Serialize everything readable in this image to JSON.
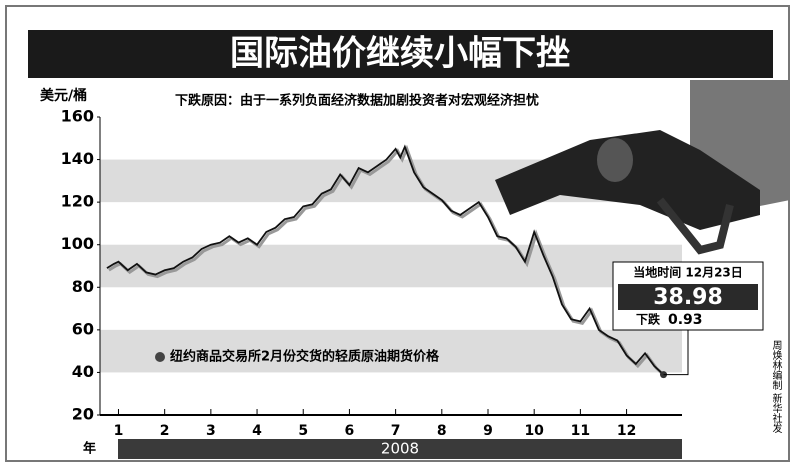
{
  "chart_data": {
    "type": "line",
    "title": "国际油价继续小幅下挫",
    "y_label": "美元/桶",
    "subtitle": "下跌原因：由于一系列负面经济数据加剧投资者对宏观经济担忧",
    "x_label": "年",
    "year": "2008",
    "x": [
      0.75,
      0.9,
      1.0,
      1.2,
      1.4,
      1.6,
      1.8,
      2.0,
      2.2,
      2.4,
      2.6,
      2.8,
      3.0,
      3.2,
      3.4,
      3.6,
      3.8,
      4.0,
      4.2,
      4.4,
      4.6,
      4.8,
      5.0,
      5.2,
      5.4,
      5.6,
      5.8,
      6.0,
      6.2,
      6.4,
      6.6,
      6.8,
      7.0,
      7.1,
      7.2,
      7.4,
      7.6,
      7.8,
      8.0,
      8.2,
      8.4,
      8.6,
      8.8,
      9.0,
      9.2,
      9.4,
      9.6,
      9.8,
      10.0,
      10.2,
      10.4,
      10.6,
      10.8,
      11.0,
      11.2,
      11.4,
      11.6,
      11.8,
      12.0,
      12.2,
      12.4,
      12.6,
      12.8
    ],
    "series": [
      {
        "name": "纽约商品交易所2月份交货的轻质原油期货价格",
        "color": "#111111",
        "values": [
          89,
          91,
          92,
          88,
          91,
          87,
          86,
          88,
          89,
          92,
          94,
          98,
          100,
          101,
          104,
          101,
          103,
          100,
          106,
          108,
          112,
          113,
          118,
          119,
          124,
          126,
          133,
          128,
          136,
          134,
          137,
          140,
          145,
          141,
          146,
          134,
          127,
          124,
          121,
          116,
          114,
          117,
          120,
          113,
          104,
          103,
          99,
          92,
          106,
          95,
          85,
          72,
          65,
          64,
          70,
          60,
          57,
          55,
          48,
          44,
          49,
          43,
          38.98
        ]
      }
    ],
    "xlim": [
      0.6,
      13.2
    ],
    "xticks": [
      1,
      2,
      3,
      4,
      5,
      6,
      7,
      8,
      9,
      10,
      11,
      12
    ],
    "ylim": [
      20,
      160
    ],
    "yticks": [
      20,
      40,
      60,
      80,
      100,
      120,
      140,
      160
    ],
    "bands": true,
    "callout_title": "当地时间 12月23日",
    "callout_change_label": "下跌",
    "callout_change": 0.93,
    "credit": "周焕林编制 新华社发"
  }
}
